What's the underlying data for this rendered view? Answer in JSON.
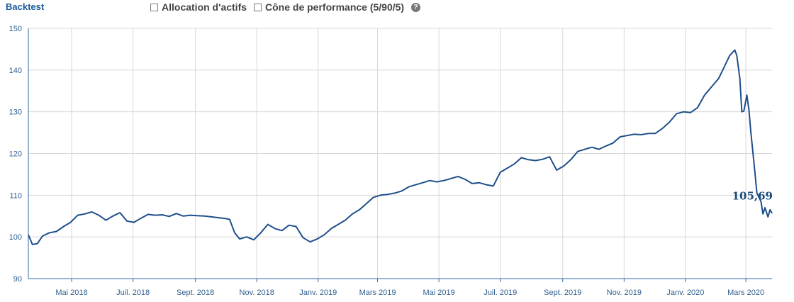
{
  "header": {
    "title": "Backtest",
    "options": [
      {
        "label": "Allocation d'actifs",
        "checked": false
      },
      {
        "label": "Cône de performance (5/90/5)",
        "checked": false
      }
    ],
    "help_icon": "?"
  },
  "colors": {
    "line": "#1f4f8a",
    "grid": "#d8d8d8",
    "axis": "#2f6aa8",
    "tick_text": "#2f5f8f"
  },
  "chart_data": {
    "type": "line",
    "title": "",
    "xlabel": "",
    "ylabel": "",
    "ylim": [
      90,
      150
    ],
    "yticks": [
      90,
      100,
      110,
      120,
      130,
      140,
      150
    ],
    "xlim": [
      "2018-03-19",
      "2020-03-27"
    ],
    "xticks": [
      {
        "date": "2018-05-01",
        "label": "Mai 2018"
      },
      {
        "date": "2018-07-01",
        "label": "Juil. 2018"
      },
      {
        "date": "2018-09-01",
        "label": "Sept. 2018"
      },
      {
        "date": "2018-11-01",
        "label": "Nov. 2018"
      },
      {
        "date": "2019-01-01",
        "label": "Janv. 2019"
      },
      {
        "date": "2019-03-01",
        "label": "Mars 2019"
      },
      {
        "date": "2019-05-01",
        "label": "Mai 2019"
      },
      {
        "date": "2019-07-01",
        "label": "Juil. 2019"
      },
      {
        "date": "2019-09-01",
        "label": "Sept. 2019"
      },
      {
        "date": "2019-11-01",
        "label": "Nov. 2019"
      },
      {
        "date": "2020-01-01",
        "label": "Janv. 2020"
      },
      {
        "date": "2020-03-01",
        "label": "Mars 2020"
      }
    ],
    "grid": true,
    "last_value_label": "105,69",
    "series": [
      {
        "points": [
          [
            "2018-03-19",
            100.5
          ],
          [
            "2018-03-23",
            98.2
          ],
          [
            "2018-03-28",
            98.4
          ],
          [
            "2018-04-02",
            100.2
          ],
          [
            "2018-04-09",
            101.0
          ],
          [
            "2018-04-16",
            101.3
          ],
          [
            "2018-04-23",
            102.5
          ],
          [
            "2018-04-30",
            103.5
          ],
          [
            "2018-05-07",
            105.2
          ],
          [
            "2018-05-14",
            105.5
          ],
          [
            "2018-05-21",
            106.0
          ],
          [
            "2018-05-28",
            105.2
          ],
          [
            "2018-06-04",
            104.0
          ],
          [
            "2018-06-11",
            105.0
          ],
          [
            "2018-06-18",
            105.8
          ],
          [
            "2018-06-25",
            103.8
          ],
          [
            "2018-07-02",
            103.5
          ],
          [
            "2018-07-09",
            104.5
          ],
          [
            "2018-07-16",
            105.4
          ],
          [
            "2018-07-23",
            105.2
          ],
          [
            "2018-07-30",
            105.3
          ],
          [
            "2018-08-06",
            104.9
          ],
          [
            "2018-08-13",
            105.6
          ],
          [
            "2018-08-20",
            105.0
          ],
          [
            "2018-08-27",
            105.2
          ],
          [
            "2018-09-03",
            105.1
          ],
          [
            "2018-09-10",
            105.0
          ],
          [
            "2018-09-17",
            104.8
          ],
          [
            "2018-09-24",
            104.6
          ],
          [
            "2018-10-01",
            104.4
          ],
          [
            "2018-10-05",
            104.2
          ],
          [
            "2018-10-10",
            101.0
          ],
          [
            "2018-10-15",
            99.5
          ],
          [
            "2018-10-22",
            100.0
          ],
          [
            "2018-10-29",
            99.3
          ],
          [
            "2018-11-05",
            101.0
          ],
          [
            "2018-11-12",
            103.0
          ],
          [
            "2018-11-19",
            102.0
          ],
          [
            "2018-11-26",
            101.5
          ],
          [
            "2018-12-03",
            102.8
          ],
          [
            "2018-12-10",
            102.5
          ],
          [
            "2018-12-17",
            99.8
          ],
          [
            "2018-12-24",
            98.8
          ],
          [
            "2018-12-31",
            99.5
          ],
          [
            "2019-01-07",
            100.5
          ],
          [
            "2019-01-14",
            102.0
          ],
          [
            "2019-01-21",
            103.0
          ],
          [
            "2019-01-28",
            104.0
          ],
          [
            "2019-02-04",
            105.5
          ],
          [
            "2019-02-11",
            106.5
          ],
          [
            "2019-02-18",
            108.0
          ],
          [
            "2019-02-25",
            109.5
          ],
          [
            "2019-03-04",
            110.0
          ],
          [
            "2019-03-11",
            110.2
          ],
          [
            "2019-03-18",
            110.5
          ],
          [
            "2019-03-25",
            111.0
          ],
          [
            "2019-04-01",
            112.0
          ],
          [
            "2019-04-08",
            112.5
          ],
          [
            "2019-04-15",
            113.0
          ],
          [
            "2019-04-22",
            113.5
          ],
          [
            "2019-04-29",
            113.2
          ],
          [
            "2019-05-06",
            113.5
          ],
          [
            "2019-05-13",
            114.0
          ],
          [
            "2019-05-20",
            114.5
          ],
          [
            "2019-05-27",
            113.8
          ],
          [
            "2019-06-03",
            112.8
          ],
          [
            "2019-06-10",
            113.0
          ],
          [
            "2019-06-17",
            112.5
          ],
          [
            "2019-06-24",
            112.2
          ],
          [
            "2019-07-01",
            115.5
          ],
          [
            "2019-07-08",
            116.5
          ],
          [
            "2019-07-15",
            117.5
          ],
          [
            "2019-07-22",
            119.0
          ],
          [
            "2019-07-29",
            118.5
          ],
          [
            "2019-08-05",
            118.3
          ],
          [
            "2019-08-12",
            118.6
          ],
          [
            "2019-08-19",
            119.2
          ],
          [
            "2019-08-26",
            116.0
          ],
          [
            "2019-09-02",
            117.0
          ],
          [
            "2019-09-09",
            118.5
          ],
          [
            "2019-09-16",
            120.5
          ],
          [
            "2019-09-23",
            121.0
          ],
          [
            "2019-09-30",
            121.5
          ],
          [
            "2019-10-07",
            121.0
          ],
          [
            "2019-10-14",
            121.8
          ],
          [
            "2019-10-21",
            122.5
          ],
          [
            "2019-10-28",
            124.0
          ],
          [
            "2019-11-04",
            124.3
          ],
          [
            "2019-11-11",
            124.6
          ],
          [
            "2019-11-18",
            124.5
          ],
          [
            "2019-11-25",
            124.8
          ],
          [
            "2019-12-02",
            124.8
          ],
          [
            "2019-12-09",
            126.0
          ],
          [
            "2019-12-16",
            127.5
          ],
          [
            "2019-12-23",
            129.5
          ],
          [
            "2019-12-30",
            130.0
          ],
          [
            "2020-01-06",
            129.8
          ],
          [
            "2020-01-13",
            131.0
          ],
          [
            "2020-01-20",
            134.0
          ],
          [
            "2020-01-27",
            136.0
          ],
          [
            "2020-02-03",
            138.0
          ],
          [
            "2020-02-10",
            141.5
          ],
          [
            "2020-02-14",
            143.5
          ],
          [
            "2020-02-19",
            144.8
          ],
          [
            "2020-02-21",
            143.5
          ],
          [
            "2020-02-24",
            138.0
          ],
          [
            "2020-02-26",
            130.0
          ],
          [
            "2020-02-28",
            130.2
          ],
          [
            "2020-03-02",
            134.0
          ],
          [
            "2020-03-04",
            130.5
          ],
          [
            "2020-03-06",
            125.0
          ],
          [
            "2020-03-09",
            118.0
          ],
          [
            "2020-03-12",
            110.5
          ],
          [
            "2020-03-16",
            108.5
          ],
          [
            "2020-03-18",
            105.5
          ],
          [
            "2020-03-20",
            107.0
          ],
          [
            "2020-03-23",
            104.8
          ],
          [
            "2020-03-25",
            106.5
          ],
          [
            "2020-03-27",
            105.69
          ]
        ]
      }
    ]
  }
}
